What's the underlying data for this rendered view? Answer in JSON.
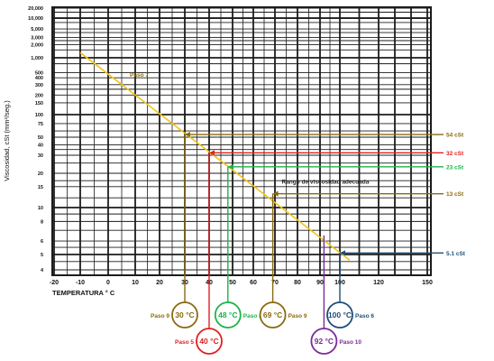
{
  "chart_data": {
    "type": "line",
    "xlabel": "TEMPERATURA ° C",
    "ylabel": "Viscosidad, cSt (mm²/seg.)",
    "x_ticks": [
      -20,
      -10,
      0,
      10,
      20,
      30,
      40,
      50,
      60,
      70,
      80,
      90,
      100,
      120,
      150
    ],
    "y_ticks": [
      {
        "v": 20000,
        "t": "20,000"
      },
      {
        "v": 10000,
        "t": "10,000"
      },
      {
        "v": 5000,
        "t": "5,000"
      },
      {
        "v": 3000,
        "t": "3,000"
      },
      {
        "v": 2000,
        "t": "2,000"
      },
      {
        "v": 1000,
        "t": "1,000"
      },
      {
        "v": 500,
        "t": "500"
      },
      {
        "v": 400,
        "t": "400"
      },
      {
        "v": 300,
        "t": "300"
      },
      {
        "v": 200,
        "t": "200"
      },
      {
        "v": 150,
        "t": "150"
      },
      {
        "v": 100,
        "t": "100"
      },
      {
        "v": 75,
        "t": "75"
      },
      {
        "v": 50,
        "t": "50"
      },
      {
        "v": 40,
        "t": "40"
      },
      {
        "v": 30,
        "t": "30"
      },
      {
        "v": 20,
        "t": "20"
      },
      {
        "v": 15,
        "t": "15"
      },
      {
        "v": 10,
        "t": "10"
      },
      {
        "v": 8,
        "t": "8"
      },
      {
        "v": 6,
        "t": "6"
      },
      {
        "v": 5,
        "t": "5"
      },
      {
        "v": 4,
        "t": "4"
      }
    ],
    "ylim": [
      4,
      20000
    ],
    "xlim": [
      -20,
      150
    ],
    "grid": true,
    "line": {
      "x": [
        -10,
        105
      ],
      "y": [
        1300,
        4.6
      ],
      "color": "#f2c318"
    },
    "annotations": [
      {
        "text": "Paso 7",
        "x": 8,
        "y": 420,
        "color": "#8a6a10"
      },
      {
        "text": "Rango de viscosidad adecuada",
        "x": 73,
        "y": 16,
        "color": "#222222"
      }
    ],
    "markers": [
      {
        "temp": "30 °C",
        "x": 30,
        "y": 54,
        "label": "54 cSt",
        "step": "Paso 9",
        "step_side": "left",
        "level": "upper",
        "color": "#8a6a10"
      },
      {
        "temp": "40 °C",
        "x": 40,
        "y": 32,
        "label": "32 cSt",
        "step": "Paso 5",
        "step_side": "left",
        "level": "lower",
        "color": "#e02020"
      },
      {
        "temp": "48 °C",
        "x": 48,
        "y": 23,
        "label": "23 cSt",
        "step": "Paso 8",
        "step_side": "right",
        "level": "mid",
        "color": "#1db34a"
      },
      {
        "temp": "69 °C",
        "x": 69,
        "y": 13,
        "label": "13 cSt",
        "step": "Paso 9",
        "step_side": "right",
        "level": "upper",
        "color": "#8a6a10"
      },
      {
        "temp": "100 °C",
        "x": 100,
        "y": 5.1,
        "label": "5.1 cSt",
        "step": "Paso 6",
        "step_side": "right",
        "level": "upper",
        "color": "#1f4e79"
      },
      {
        "temp": "92 °C",
        "x": 92,
        "y": 6.5,
        "label": "",
        "step": "Paso 10",
        "step_side": "right",
        "level": "lower",
        "color": "#7a2a9a"
      }
    ]
  }
}
